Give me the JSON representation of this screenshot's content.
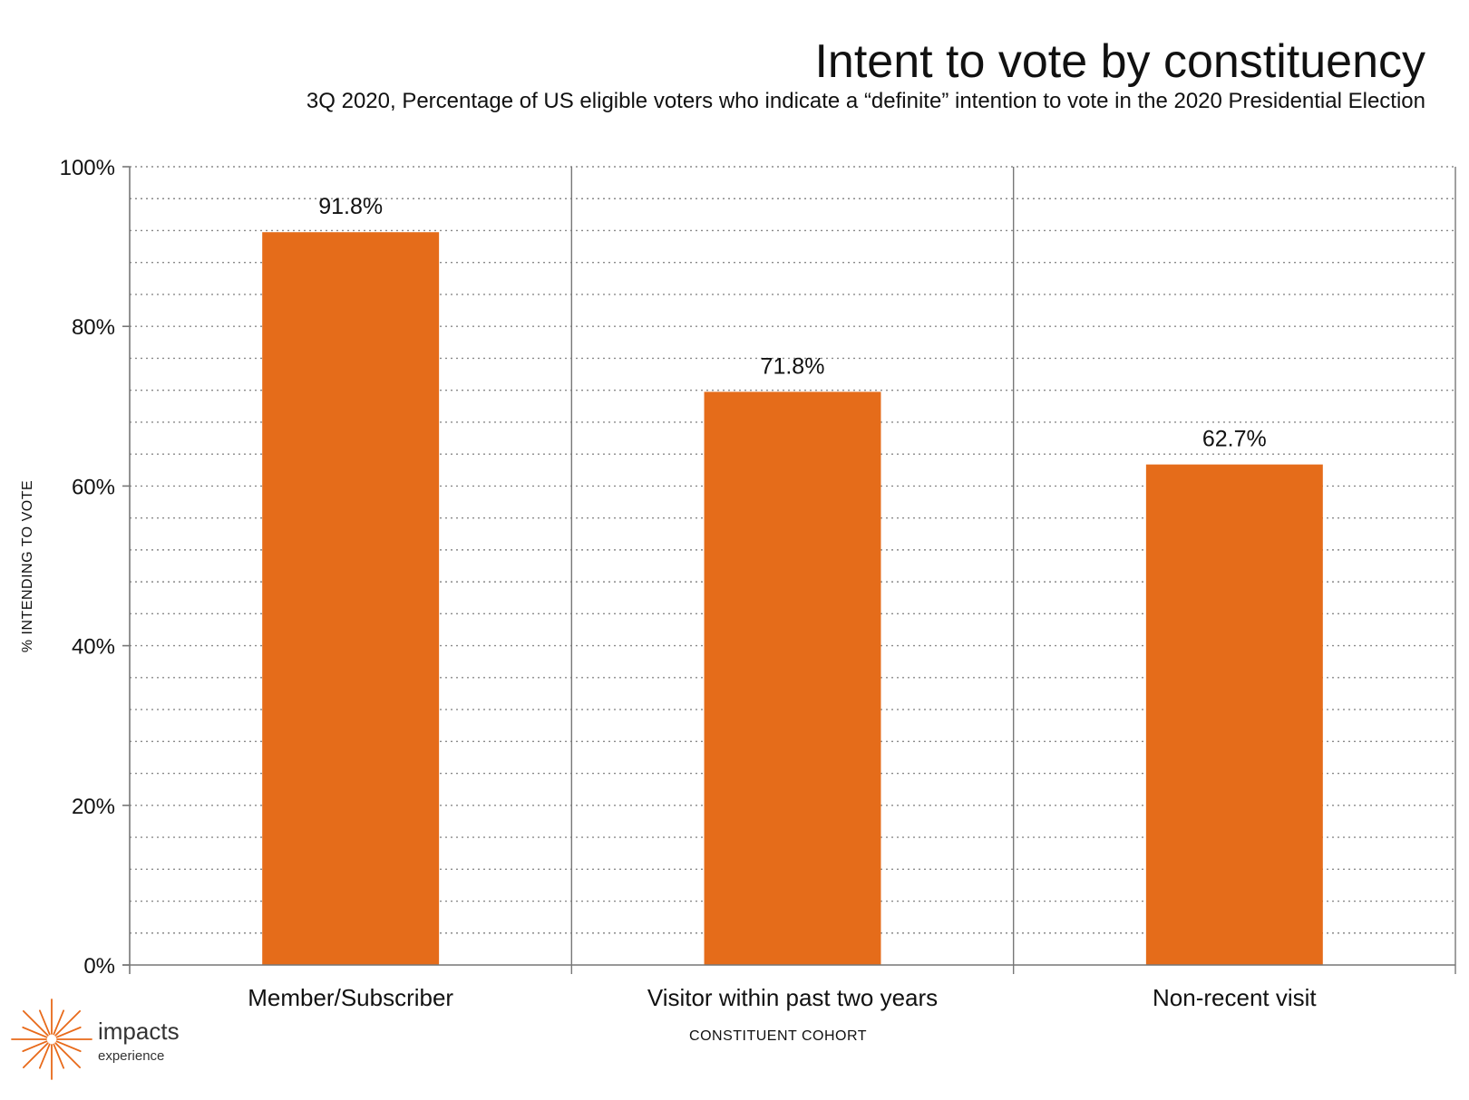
{
  "header": {
    "title": "Intent to vote by constituency",
    "subtitle": "3Q 2020, Percentage of US eligible voters who indicate a “definite” intention to vote in the 2020 Presidential Election"
  },
  "logo": {
    "name": "impacts",
    "tagline": "experience",
    "icon": "sunburst-icon",
    "color": "#E86A1A"
  },
  "colors": {
    "bar": "#E56C1A",
    "grid": "#8a8a8a",
    "axis": "#777777"
  },
  "chart_data": {
    "type": "bar",
    "categories": [
      "Member/Subscriber",
      "Visitor within past two years",
      "Non-recent visit"
    ],
    "values": [
      91.8,
      71.8,
      62.7
    ],
    "data_labels": [
      "91.8%",
      "71.8%",
      "62.7%"
    ],
    "xlabel": "CONSTITUENT COHORT",
    "ylabel": "% INTENDING TO VOTE",
    "ylim": [
      0,
      100
    ],
    "yticks": [
      0,
      20,
      40,
      60,
      80,
      100
    ],
    "ytick_labels": [
      "0%",
      "20%",
      "40%",
      "60%",
      "80%",
      "100%"
    ],
    "minor_grid_step": 4,
    "grid": true,
    "legend": "none"
  }
}
